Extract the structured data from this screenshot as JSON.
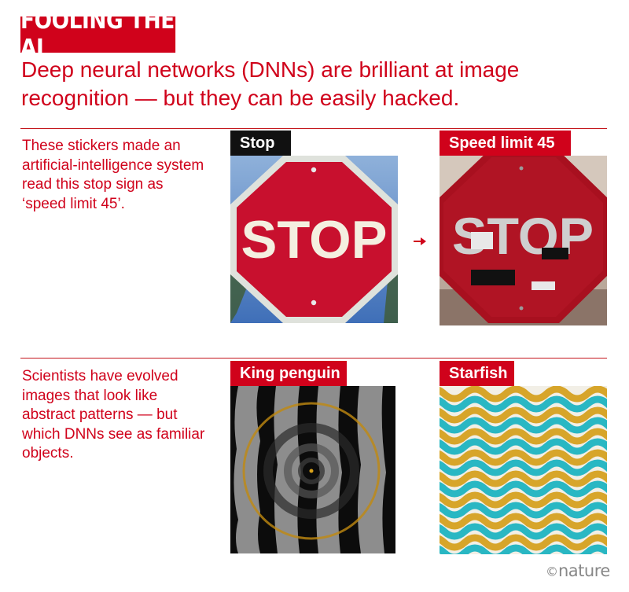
{
  "title": "FOOLING THE AI",
  "subtitle": "Deep neural networks (DNNs) are brilliant at image recognition — but they can be easily hacked.",
  "section1": {
    "description": "These stickers made an artificial-intelligence system read this stop sign as ‘speed limit 45’.",
    "original_label": "Stop",
    "hacked_label": "Speed limit 45",
    "sign_text": "STOP"
  },
  "section2": {
    "description": "Scientists have evolved images that look like abstract patterns — but which DNNs see as familiar objects.",
    "left_label": "King penguin",
    "right_label": "Starfish"
  },
  "credit": {
    "symbol": "©",
    "name": "nature"
  },
  "colors": {
    "accent": "#d0021b",
    "sign_red": "#c8102e",
    "sky_blue": "#3f78c4"
  }
}
